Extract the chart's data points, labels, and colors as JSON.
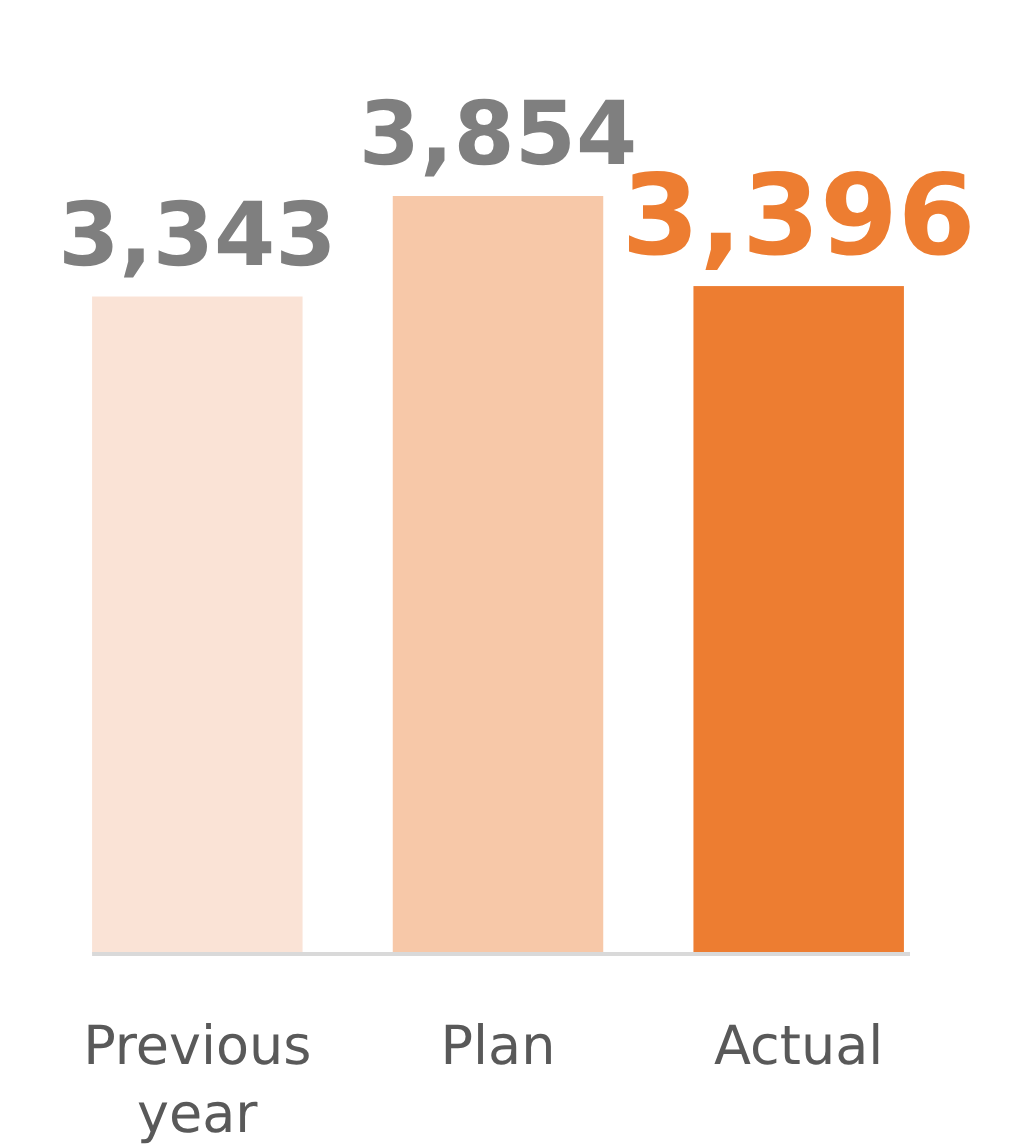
{
  "chart_data": {
    "type": "bar",
    "categories": [
      "Previous year",
      "Plan",
      "Actual"
    ],
    "values": [
      3343,
      3854,
      3396
    ],
    "colors": [
      "#fae3d6",
      "#f7c8a8",
      "#ed7d31"
    ],
    "value_labels": [
      "3,343",
      "3,854",
      "3,396"
    ]
  }
}
